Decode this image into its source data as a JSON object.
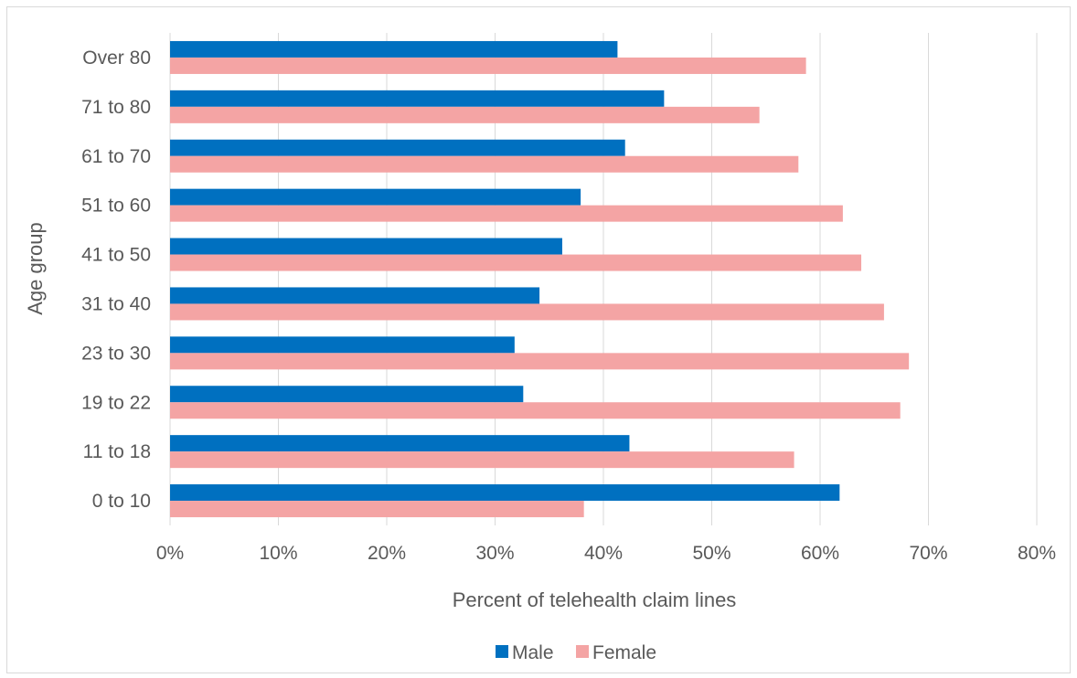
{
  "chart_data": {
    "type": "bar",
    "orientation": "horizontal",
    "categories": [
      "0 to 10",
      "11 to 18",
      "19 to 22",
      "23 to 30",
      "31 to 40",
      "41 to 50",
      "51 to 60",
      "61 to 70",
      "71 to 80",
      "Over 80"
    ],
    "series": [
      {
        "name": "Male",
        "color": "#0070c0",
        "values": [
          61.8,
          42.4,
          32.6,
          31.8,
          34.1,
          36.2,
          37.9,
          42.0,
          45.6,
          41.3
        ]
      },
      {
        "name": "Female",
        "color": "#f4a4a4",
        "values": [
          38.2,
          57.6,
          67.4,
          68.2,
          65.9,
          63.8,
          62.1,
          58.0,
          54.4,
          58.7
        ]
      }
    ],
    "xlabel": "Percent of telehealth claim lines",
    "ylabel": "Age group",
    "xlim": [
      0,
      80
    ],
    "xticks": [
      "0%",
      "10%",
      "20%",
      "30%",
      "40%",
      "50%",
      "60%",
      "70%",
      "80%"
    ],
    "grid": "vertical",
    "legend_position": "bottom"
  }
}
